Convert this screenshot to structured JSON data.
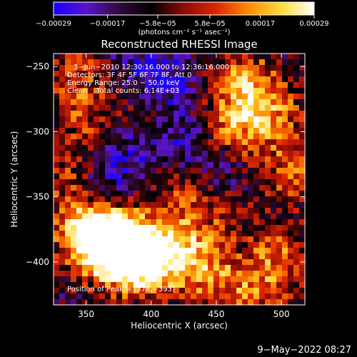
{
  "chart_data": {
    "type": "heatmap",
    "title": "Reconstructed RHESSI Image",
    "xlabel": "Heliocentric X (arcsec)",
    "ylabel": "Heliocentric Y (arcsec)",
    "xlim": [
      325,
      518
    ],
    "ylim": [
      -433,
      -240
    ],
    "x_ticks": [
      350,
      400,
      450,
      500
    ],
    "x_tick_labels": [
      "350",
      "400",
      "450",
      "500"
    ],
    "y_ticks": [
      -250,
      -300,
      -350,
      -400
    ],
    "y_tick_labels": [
      "−250",
      "−300",
      "−350",
      "−400"
    ],
    "grid": false,
    "colorbar": {
      "position": "top",
      "range": [
        -0.00029,
        0.00029
      ],
      "ticks": [
        -0.00029,
        -0.00017,
        -5.8e-05,
        5.8e-05,
        0.00017,
        0.00029
      ],
      "tick_labels": [
        "−0.00029",
        "−0.00017",
        "−5.8e−05",
        "5.8e−05",
        "0.00017",
        "0.00029"
      ],
      "units_label": "(photons cm⁻² s⁻¹ asec⁻²)",
      "colors": [
        "#1400ff",
        "#5a14c8",
        "#320a3c",
        "#000000",
        "#8c0a0a",
        "#dc2800",
        "#ff8c00",
        "#ffdc3c",
        "#ffffff"
      ]
    },
    "annotations": [
      "3−Jun−2010 12:30:16.000 to 12:36:16.000",
      "Detectors: 3F 4F 5F 6F 7F 8F, Att 0",
      "Energy Range: 25.0 − 50.0 keV",
      "Clean    Total counts: 6.14E+03"
    ],
    "peak_label": "Position of Peak = [378,−393]",
    "peak_position": [
      378,
      -393
    ],
    "sources": [
      {
        "x": 378,
        "y": -393,
        "level": 1.0
      },
      {
        "x": 365,
        "y": -382,
        "level": 0.85
      },
      {
        "x": 395,
        "y": -400,
        "level": 0.75
      },
      {
        "x": 345,
        "y": -375,
        "level": 0.6
      },
      {
        "x": 418,
        "y": -385,
        "level": 0.55
      },
      {
        "x": 440,
        "y": -408,
        "level": 0.55
      },
      {
        "x": 478,
        "y": -422,
        "level": 0.5
      },
      {
        "x": 500,
        "y": -395,
        "level": 0.45
      },
      {
        "x": 470,
        "y": -262,
        "level": 0.6
      },
      {
        "x": 490,
        "y": -285,
        "level": 0.55
      },
      {
        "x": 462,
        "y": -300,
        "level": 0.45
      },
      {
        "x": 505,
        "y": -330,
        "level": 0.45
      },
      {
        "x": 340,
        "y": -255,
        "level": 0.4
      },
      {
        "x": 350,
        "y": -290,
        "level": 0.35
      },
      {
        "x": 335,
        "y": -335,
        "level": 0.35
      },
      {
        "x": 420,
        "y": -345,
        "level": 0.3
      },
      {
        "x": 455,
        "y": -360,
        "level": 0.3
      },
      {
        "x": 400,
        "y": -280,
        "level": 0.2
      }
    ],
    "cold_regions": [
      {
        "x": 410,
        "y": -265,
        "level": 0.8
      },
      {
        "x": 425,
        "y": -310,
        "level": 0.7
      },
      {
        "x": 380,
        "y": -320,
        "level": 0.6
      },
      {
        "x": 460,
        "y": -335,
        "level": 0.5
      },
      {
        "x": 360,
        "y": -345,
        "level": 0.5
      },
      {
        "x": 395,
        "y": -245,
        "level": 0.6
      }
    ]
  },
  "footer": {
    "date_stamp": "9−May−2022 08:27"
  }
}
